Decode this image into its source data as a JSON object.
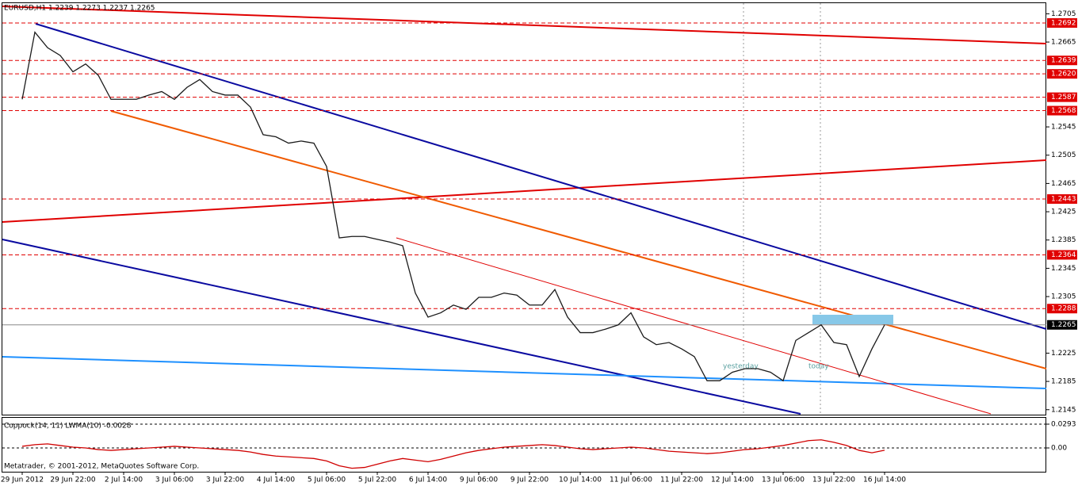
{
  "chart_data": [
    {
      "type": "line",
      "title": "EURUSD,H1 1.2239 1.2273 1.2237 1.2265",
      "categories": [
        "29 Jun 2012",
        null,
        null,
        null,
        "29 Jun 22:00",
        null,
        null,
        null,
        "2 Jul 14:00",
        null,
        null,
        null,
        "3 Jul 06:00",
        null,
        null,
        null,
        "3 Jul 22:00",
        null,
        null,
        null,
        "4 Jul 14:00",
        null,
        null,
        null,
        "5 Jul 06:00",
        null,
        null,
        null,
        "5 Jul 22:00",
        null,
        null,
        null,
        "6 Jul 14:00",
        null,
        null,
        null,
        "9 Jul 06:00",
        null,
        null,
        null,
        "9 Jul 22:00",
        null,
        null,
        null,
        "10 Jul 14:00",
        null,
        null,
        null,
        "11 Jul 06:00",
        null,
        null,
        null,
        "11 Jul 22:00",
        null,
        null,
        null,
        "12 Jul 14:00",
        null,
        null,
        null,
        "13 Jul 06:00",
        null,
        null,
        null,
        "13 Jul 22:00",
        null,
        null,
        null,
        "16 Jul 14:00"
      ],
      "series": [
        {
          "color": "#1a1a1a",
          "values": [
            1.2584,
            1.2679,
            1.2657,
            1.2646,
            1.2623,
            1.2634,
            1.2618,
            1.2584,
            1.2584,
            1.2584,
            1.259,
            1.2595,
            1.2584,
            1.2601,
            1.2612,
            1.2595,
            1.259,
            1.259,
            1.2573,
            1.2534,
            1.2531,
            1.2522,
            1.2525,
            1.2522,
            1.2489,
            1.2388,
            1.239,
            1.239,
            1.2386,
            1.2382,
            1.2377,
            1.231,
            1.2276,
            1.2282,
            1.2293,
            1.2287,
            1.2304,
            1.2304,
            1.231,
            1.2307,
            1.2293,
            1.2293,
            1.2315,
            1.2276,
            1.2254,
            1.2254,
            1.2259,
            1.2265,
            1.2282,
            1.2248,
            1.2237,
            1.224,
            1.2231,
            1.222,
            1.2186,
            1.2186,
            1.2198,
            1.2203,
            1.2203,
            1.2198,
            1.2186,
            1.2243,
            1.2254,
            1.2265,
            1.224,
            1.2237,
            1.2192,
            1.2231,
            1.2265
          ]
        }
      ],
      "ylim": [
        1.2138,
        1.272
      ],
      "yticks": [
        1.2705,
        1.2665,
        1.2545,
        1.2505,
        1.2465,
        1.2425,
        1.2385,
        1.2345,
        1.2305,
        1.2225,
        1.2185,
        1.2145
      ],
      "price_levels": [
        1.2692,
        1.2639,
        {
          "value": 1.262,
          "label": "1.2620"
        },
        1.2587,
        1.2568,
        1.2443,
        1.2364,
        1.2288
      ],
      "level_color": "#e00000",
      "last_price": 1.2265,
      "annotations": [
        "yesterday",
        "today"
      ]
    },
    {
      "type": "line",
      "title": "Coppock(14, 11) LWMA(10) -0.0028",
      "series": [
        {
          "color": "#d00000",
          "values": [
            0.002,
            0.004,
            0.005,
            0.003,
            0.001,
            0,
            -0.002,
            -0.003,
            -0.002,
            -0.001,
            0,
            0.001,
            0.002,
            0.001,
            0,
            -0.001,
            -0.002,
            -0.003,
            -0.005,
            -0.008,
            -0.01,
            -0.011,
            -0.012,
            -0.013,
            -0.016,
            -0.022,
            -0.025,
            -0.024,
            -0.02,
            -0.016,
            -0.013,
            -0.015,
            -0.017,
            -0.014,
            -0.01,
            -0.006,
            -0.003,
            -0.001,
            0.001,
            0.002,
            0.003,
            0.004,
            0.003,
            0.001,
            -0.001,
            -0.002,
            -0.001,
            0,
            0.001,
            0,
            -0.002,
            -0.004,
            -0.005,
            -0.006,
            -0.007,
            -0.006,
            -0.004,
            -0.002,
            -0.001,
            0.001,
            0.003,
            0.006,
            0.009,
            0.01,
            0.007,
            0.003,
            -0.003,
            -0.006,
            -0.0028
          ]
        }
      ],
      "ylim": [
        -0.0293,
        0.0371
      ],
      "yticks": [
        0.0293,
        {
          "value": 0,
          "label": "0.00"
        }
      ]
    }
  ],
  "footer": "Metatrader, © 2001-2012, MetaQuotes Software Corp."
}
